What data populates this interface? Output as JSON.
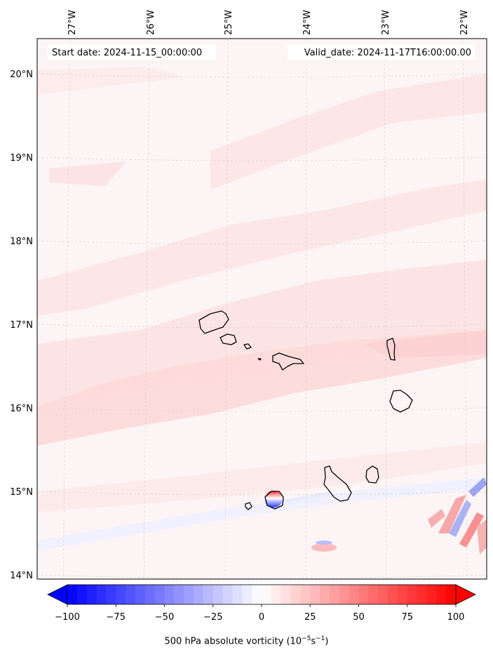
{
  "map": {
    "start_date_label": "Start date: 2024-11-15_00:00:00",
    "valid_date_label": "Valid_date: 2024-11-17T16:00:00.00",
    "longitude_ticks": [
      "27°W",
      "26°W",
      "25°W",
      "24°W",
      "23°W",
      "22°W"
    ],
    "latitude_ticks": [
      "20°N",
      "19°N",
      "18°N",
      "17°N",
      "16°N",
      "15°N",
      "14°N"
    ],
    "extent": {
      "lon_min": -27.35,
      "lon_max": -21.75,
      "lat_min": 13.95,
      "lat_max": 20.42
    },
    "gridlines": true,
    "colors": {
      "frame": "#000000",
      "coastline": "#000000",
      "grid": "#cccccc"
    }
  },
  "colorbar": {
    "title_main": "500 hPa absolute vorticity (10",
    "title_exp1": "−5",
    "title_mid": "s",
    "title_exp2": "−1",
    "title_end": ")",
    "tick_labels": [
      "−100",
      "−75",
      "−50",
      "−25",
      "0",
      "25",
      "50",
      "75",
      "100"
    ],
    "range": [
      -100,
      100
    ],
    "extend": "both",
    "colormap": "bwr",
    "colors": {
      "min": "#0000ff",
      "mid": "#ffffff",
      "max": "#ff0000"
    }
  },
  "fields": {
    "background_color": "#fdf5f5",
    "pink_band_color": "#fde2e2",
    "light_pink_color": "#fcecec",
    "pale_blue_color": "#eef0ff"
  }
}
